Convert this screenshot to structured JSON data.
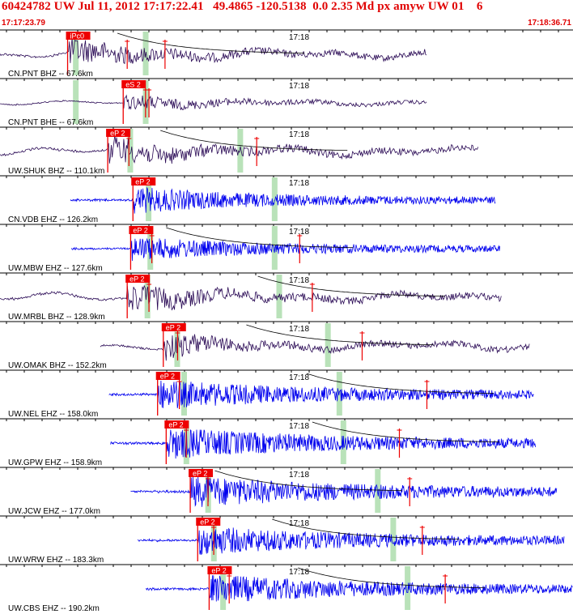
{
  "header": {
    "title": "60424782 UW Jul 11, 2012 17:17:22.41   49.4865 -120.5138  0.0 2.35 Md px amyw UW 01    6",
    "start_time": "17:17:23.79",
    "end_time": "17:18:36.71"
  },
  "colors": {
    "vertical_trace": "#2a0a55",
    "high_gain_trace": "#0000ee",
    "pick": "#ee0000",
    "window": "#b9e2b9",
    "grid": "#000000"
  },
  "traces": [
    {
      "label": "CN.PNT BHZ -- 67.6km",
      "pick": "iPc0",
      "minute": "17:18",
      "color": "dark",
      "s": 0.0,
      "e": 0.745,
      "p": 0.118,
      "g1": 0.133,
      "g2": 0.255,
      "c": 0.205,
      "r1": 0.222,
      "r2": 0.288,
      "amp": 0.55,
      "burst": 0.14
    },
    {
      "label": "CN.PNT BHE -- 67.6km",
      "pick": "eS 2",
      "minute": "17:18",
      "color": "dark",
      "s": 0.0,
      "e": 0.745,
      "p": 0.215,
      "g1": 0.133,
      "g2": 0.255,
      "c": 0,
      "r1": 0.254,
      "r2": 0.26,
      "amp": 0.3,
      "burst": 0.17
    },
    {
      "label": "UW.SHUK BHZ -- 110.1km",
      "pick": "eP 2",
      "minute": "17:18",
      "color": "dark",
      "s": 0.0,
      "e": 0.835,
      "p": 0.188,
      "g1": 0.228,
      "g2": 0.42,
      "c": 0.28,
      "r1": 0.225,
      "r2": 0.448,
      "amp": 0.6,
      "burst": 0.12
    },
    {
      "label": "CN.VDB EHZ -- 126.2km",
      "pick": "eP 2",
      "minute": "17:18",
      "color": "blue",
      "s": 0.123,
      "e": 0.865,
      "p": 0.232,
      "g1": 0.26,
      "g2": 0.48,
      "c": 0,
      "r1": 0,
      "r2": 0,
      "amp": 0.5,
      "burst": 0.2
    },
    {
      "label": "UW.MBW EHZ -- 127.6km",
      "pick": "eP 2",
      "minute": "17:18",
      "color": "blue",
      "s": 0.125,
      "e": 0.873,
      "p": 0.228,
      "g1": 0.263,
      "g2": 0.48,
      "c": 0.29,
      "r1": 0.265,
      "r2": 0.523,
      "amp": 0.45,
      "burst": 0.22
    },
    {
      "label": "UW.MRBL BHZ -- 128.9km",
      "pick": "eP 2",
      "minute": "17:18",
      "color": "dark",
      "s": 0.0,
      "e": 0.875,
      "p": 0.222,
      "g1": 0.258,
      "g2": 0.488,
      "c": 0.45,
      "r1": 0.26,
      "r2": 0.545,
      "amp": 0.6,
      "burst": 0.12
    },
    {
      "label": "UW.OMAK BHZ -- 152.2km",
      "pick": "eP 2",
      "minute": "17:18",
      "color": "dark",
      "s": 0.175,
      "e": 0.925,
      "p": 0.285,
      "g1": 0.31,
      "g2": 0.573,
      "c": 0.43,
      "r1": 0.31,
      "r2": 0.632,
      "amp": 0.55,
      "burst": 0.1
    },
    {
      "label": "UW.NEL EHZ -- 158.0km",
      "pick": "eP 2",
      "minute": "17:18",
      "color": "blue",
      "s": 0.19,
      "e": 0.932,
      "p": 0.275,
      "g1": 0.322,
      "g2": 0.593,
      "c": 0.535,
      "r1": 0.313,
      "r2": 0.745,
      "amp": 0.55,
      "burst": 0.26
    },
    {
      "label": "UW.GPW EHZ -- 158.9km",
      "pick": "eP 2",
      "minute": "17:18",
      "color": "blue",
      "s": 0.193,
      "e": 0.935,
      "p": 0.29,
      "g1": 0.326,
      "g2": 0.6,
      "c": 0.545,
      "r1": 0.325,
      "r2": 0.697,
      "amp": 0.6,
      "burst": 0.26
    },
    {
      "label": "UW.JCW EHZ -- 177.0km",
      "pick": "eP 2",
      "minute": "17:18",
      "color": "blue",
      "s": 0.228,
      "e": 0.972,
      "p": 0.332,
      "g1": 0.364,
      "g2": 0.66,
      "c": 0.375,
      "r1": 0.363,
      "r2": 0.715,
      "amp": 0.6,
      "burst": 0.26
    },
    {
      "label": "UW.WRW EHZ -- 183.3km",
      "pick": "eP 2",
      "minute": "17:18",
      "color": "blue",
      "s": 0.24,
      "e": 0.985,
      "p": 0.345,
      "g1": 0.374,
      "g2": 0.687,
      "c": 0.475,
      "r1": 0.373,
      "r2": 0.737,
      "amp": 0.55,
      "burst": 0.26
    },
    {
      "label": "UW.CBS EHZ -- 190.2km",
      "pick": "eP 2",
      "minute": "17:18",
      "color": "blue",
      "s": 0.255,
      "e": 1.0,
      "p": 0.365,
      "g1": 0.39,
      "g2": 0.712,
      "c": 0.52,
      "r1": 0.4,
      "r2": 0.777,
      "amp": 0.55,
      "burst": 0.26
    }
  ]
}
